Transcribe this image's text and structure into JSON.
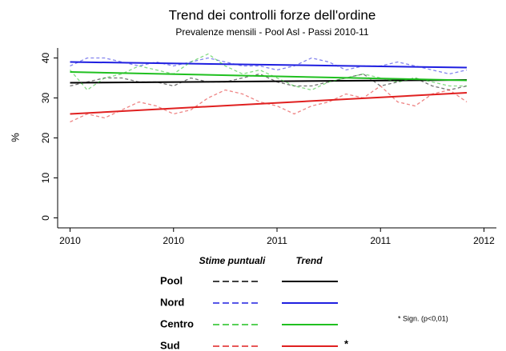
{
  "chart_data": {
    "type": "line",
    "title": "Trend dei controlli forze dell'ordine",
    "subtitle": "Prevalenze mensili - Pool Asl - Passi 2010-11",
    "y_label": "%",
    "x": [
      2010,
      2010.083,
      2010.167,
      2010.25,
      2010.333,
      2010.417,
      2010.5,
      2010.583,
      2010.667,
      2010.75,
      2010.833,
      2010.917,
      2011,
      2011.083,
      2011.167,
      2011.25,
      2011.333,
      2011.417,
      2011.5,
      2011.583,
      2011.667,
      2011.75,
      2011.833,
      2011.917
    ],
    "xlim": [
      2009.94,
      2012.06
    ],
    "xticks": [
      {
        "value": 2010,
        "label": "2010"
      },
      {
        "value": 2010.5,
        "label": "2010"
      },
      {
        "value": 2011,
        "label": "2011"
      },
      {
        "value": 2011.5,
        "label": "2011"
      },
      {
        "value": 2012,
        "label": "2012"
      }
    ],
    "ylim": [
      -2.5,
      42.5
    ],
    "yticks": [
      0,
      10,
      20,
      30,
      40
    ],
    "legend_headers": [
      "Stime puntuali",
      "Trend"
    ],
    "footnote": "* Sign. (p<0,01)",
    "series": [
      {
        "name": "Pool",
        "color": "#000000",
        "values": [
          33,
          34,
          35,
          35,
          34,
          34,
          33,
          35,
          34,
          34,
          35,
          36,
          34,
          33,
          33,
          34,
          35,
          36,
          33,
          34,
          35,
          33,
          32,
          33
        ],
        "trend": [
          33.8,
          34.5
        ]
      },
      {
        "name": "Nord",
        "color": "#1f1fe0",
        "values": [
          38,
          40,
          40,
          39,
          38,
          39,
          38,
          39,
          40,
          39,
          38,
          38,
          37,
          38,
          40,
          39,
          37,
          38,
          38,
          39,
          38,
          37,
          36,
          37
        ],
        "trend": [
          39,
          37.6
        ]
      },
      {
        "name": "Centro",
        "color": "#20c020",
        "values": [
          37,
          32,
          35,
          36,
          38,
          37,
          36,
          39,
          41,
          38,
          36,
          37,
          35,
          33,
          32,
          34,
          35,
          36,
          35,
          34,
          35,
          34,
          33,
          33
        ],
        "trend": [
          36.5,
          34.4
        ]
      },
      {
        "name": "Sud",
        "color": "#e02020",
        "values": [
          24,
          26,
          25,
          27,
          29,
          28,
          26,
          27,
          30,
          32,
          31,
          29,
          28,
          26,
          28,
          29,
          31,
          30,
          33,
          29,
          28,
          31,
          32,
          29
        ],
        "trend": [
          26,
          31.3
        ],
        "marker": "*"
      }
    ]
  }
}
